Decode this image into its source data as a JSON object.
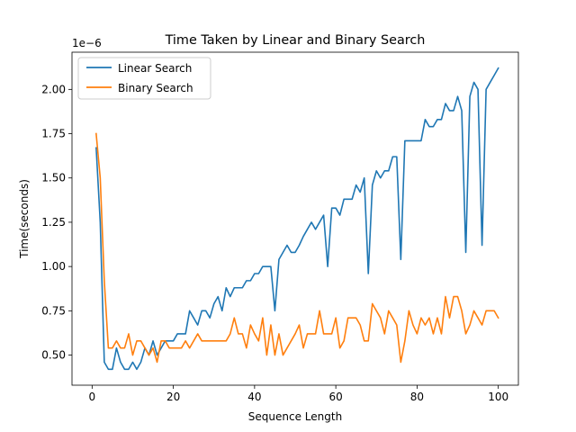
{
  "chart_data": {
    "type": "line",
    "title": "Time Taken by Linear and Binary Search",
    "xlabel": "Sequence Length",
    "ylabel": "Time(seconds)",
    "y_offset_label": "1e−6",
    "xlim": [
      -4.95,
      104.95
    ],
    "ylim": [
      0.33,
      2.21
    ],
    "xticks": [
      0,
      20,
      40,
      60,
      80,
      100
    ],
    "yticks": [
      0.5,
      0.75,
      1.0,
      1.25,
      1.5,
      1.75,
      2.0
    ],
    "ytick_labels": [
      "0.50",
      "0.75",
      "1.00",
      "1.25",
      "1.50",
      "1.75",
      "2.00"
    ],
    "grid": false,
    "legend_position": "upper-left",
    "series": [
      {
        "name": "Linear Search",
        "color": "#1f77b4",
        "x": [
          1,
          2,
          3,
          4,
          5,
          6,
          7,
          8,
          9,
          10,
          11,
          12,
          13,
          14,
          15,
          16,
          17,
          18,
          19,
          20,
          21,
          22,
          23,
          24,
          25,
          26,
          27,
          28,
          29,
          30,
          31,
          32,
          33,
          34,
          35,
          36,
          37,
          38,
          39,
          40,
          41,
          42,
          43,
          44,
          45,
          46,
          47,
          48,
          49,
          50,
          51,
          52,
          53,
          54,
          55,
          56,
          57,
          58,
          59,
          60,
          61,
          62,
          63,
          64,
          65,
          66,
          67,
          68,
          69,
          70,
          71,
          72,
          73,
          74,
          75,
          76,
          77,
          78,
          79,
          80,
          81,
          82,
          83,
          84,
          85,
          86,
          87,
          88,
          89,
          90,
          91,
          92,
          93,
          94,
          95,
          96,
          97,
          98,
          99,
          100
        ],
        "y": [
          1.67,
          1.25,
          0.46,
          0.42,
          0.42,
          0.54,
          0.46,
          0.42,
          0.42,
          0.46,
          0.42,
          0.46,
          0.54,
          0.5,
          0.58,
          0.5,
          0.54,
          0.58,
          0.58,
          0.58,
          0.62,
          0.62,
          0.62,
          0.75,
          0.71,
          0.67,
          0.75,
          0.75,
          0.71,
          0.79,
          0.83,
          0.75,
          0.88,
          0.83,
          0.88,
          0.88,
          0.88,
          0.92,
          0.92,
          0.96,
          0.96,
          1.0,
          1.0,
          1.0,
          0.75,
          1.04,
          1.08,
          1.12,
          1.08,
          1.08,
          1.12,
          1.17,
          1.21,
          1.25,
          1.21,
          1.25,
          1.29,
          1.0,
          1.33,
          1.33,
          1.29,
          1.38,
          1.38,
          1.38,
          1.46,
          1.42,
          1.5,
          0.96,
          1.46,
          1.54,
          1.5,
          1.54,
          1.54,
          1.62,
          1.62,
          1.04,
          1.71,
          1.71,
          1.71,
          1.71,
          1.71,
          1.83,
          1.79,
          1.79,
          1.83,
          1.83,
          1.92,
          1.88,
          1.88,
          1.96,
          1.88,
          1.08,
          1.96,
          2.04,
          2.0,
          1.12,
          2.0,
          2.04,
          2.08,
          2.12
        ]
      },
      {
        "name": "Binary Search",
        "color": "#ff7f0e",
        "x": [
          1,
          2,
          3,
          4,
          5,
          6,
          7,
          8,
          9,
          10,
          11,
          12,
          13,
          14,
          15,
          16,
          17,
          18,
          19,
          20,
          21,
          22,
          23,
          24,
          25,
          26,
          27,
          28,
          29,
          30,
          31,
          32,
          33,
          34,
          35,
          36,
          37,
          38,
          39,
          40,
          41,
          42,
          43,
          44,
          45,
          46,
          47,
          48,
          49,
          50,
          51,
          52,
          53,
          54,
          55,
          56,
          57,
          58,
          59,
          60,
          61,
          62,
          63,
          64,
          65,
          66,
          67,
          68,
          69,
          70,
          71,
          72,
          73,
          74,
          75,
          76,
          77,
          78,
          79,
          80,
          81,
          82,
          83,
          84,
          85,
          86,
          87,
          88,
          89,
          90,
          91,
          92,
          93,
          94,
          95,
          96,
          97,
          98,
          99,
          100
        ],
        "y": [
          1.75,
          1.5,
          0.92,
          0.54,
          0.54,
          0.58,
          0.54,
          0.54,
          0.62,
          0.5,
          0.58,
          0.58,
          0.54,
          0.5,
          0.54,
          0.46,
          0.58,
          0.58,
          0.54,
          0.54,
          0.54,
          0.54,
          0.58,
          0.54,
          0.58,
          0.62,
          0.58,
          0.58,
          0.58,
          0.58,
          0.58,
          0.58,
          0.58,
          0.62,
          0.71,
          0.62,
          0.62,
          0.54,
          0.67,
          0.62,
          0.58,
          0.71,
          0.5,
          0.67,
          0.5,
          0.62,
          0.5,
          0.54,
          0.58,
          0.62,
          0.67,
          0.54,
          0.62,
          0.62,
          0.62,
          0.75,
          0.62,
          0.62,
          0.62,
          0.71,
          0.54,
          0.58,
          0.71,
          0.71,
          0.71,
          0.67,
          0.58,
          0.58,
          0.79,
          0.75,
          0.71,
          0.62,
          0.75,
          0.71,
          0.67,
          0.46,
          0.58,
          0.75,
          0.67,
          0.62,
          0.71,
          0.67,
          0.71,
          0.62,
          0.71,
          0.62,
          0.83,
          0.71,
          0.83,
          0.83,
          0.75,
          0.62,
          0.67,
          0.75,
          0.71,
          0.67,
          0.75,
          0.75,
          0.75,
          0.71
        ]
      }
    ]
  }
}
